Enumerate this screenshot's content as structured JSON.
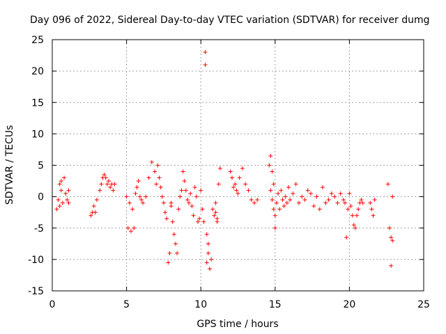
{
  "chart_data": {
    "type": "scatter",
    "title": "Day 096 of 2022, Sidereal Day-to-day VTEC variation (SDTVAR) for receiver dumg",
    "xlabel": "GPS time / hours",
    "ylabel": "SDTVAR / TECUs",
    "xlim": [
      0,
      25
    ],
    "ylim": [
      -15,
      25
    ],
    "xticks": [
      "0",
      "5",
      "10",
      "15",
      "20",
      "25"
    ],
    "yticks": [
      "-15",
      "-10",
      "-5",
      "0",
      "5",
      "10",
      "15",
      "20",
      "25"
    ],
    "grid": true,
    "marker": "+",
    "series_color": "#ff0000",
    "series": [
      {
        "name": "SDTVAR",
        "x": [
          0.3,
          0.4,
          0.5,
          0.5,
          0.6,
          0.6,
          0.7,
          0.8,
          0.9,
          1.0,
          1.1,
          1.1,
          2.6,
          2.7,
          2.8,
          2.9,
          3.0,
          3.2,
          3.3,
          3.4,
          3.5,
          3.6,
          3.7,
          3.8,
          3.9,
          4.0,
          4.1,
          4.2,
          5.0,
          5.1,
          5.2,
          5.3,
          5.4,
          5.5,
          5.6,
          5.7,
          5.8,
          5.9,
          6.0,
          6.1,
          6.3,
          6.5,
          6.7,
          6.9,
          7.0,
          7.1,
          7.2,
          7.3,
          7.4,
          7.5,
          7.6,
          7.7,
          7.8,
          7.9,
          8.0,
          8.0,
          8.1,
          8.2,
          8.3,
          8.4,
          8.5,
          8.6,
          8.7,
          8.8,
          8.9,
          9.0,
          9.1,
          9.2,
          9.3,
          9.4,
          9.5,
          9.6,
          9.7,
          9.8,
          9.9,
          10.0,
          10.1,
          10.2,
          10.3,
          10.3,
          10.4,
          10.4,
          10.5,
          10.5,
          10.6,
          10.7,
          10.8,
          10.9,
          11.0,
          11.0,
          11.1,
          11.1,
          11.2,
          11.3,
          12.0,
          12.1,
          12.2,
          12.3,
          12.4,
          12.5,
          12.6,
          12.8,
          13.0,
          13.2,
          13.4,
          13.6,
          13.8,
          14.6,
          14.7,
          14.7,
          14.8,
          14.8,
          14.9,
          14.9,
          15.0,
          15.0,
          15.1,
          15.2,
          15.3,
          15.4,
          15.5,
          15.6,
          15.7,
          15.8,
          15.9,
          16.0,
          16.2,
          16.4,
          16.6,
          16.8,
          17.0,
          17.2,
          17.4,
          17.6,
          17.8,
          18.0,
          18.2,
          18.4,
          18.6,
          18.8,
          19.0,
          19.2,
          19.4,
          19.6,
          19.7,
          19.8,
          19.9,
          20.0,
          20.1,
          20.2,
          20.3,
          20.4,
          20.5,
          20.6,
          20.7,
          20.8,
          20.9,
          21.4,
          21.5,
          21.6,
          21.7,
          22.6,
          22.7,
          22.8,
          22.8,
          22.9,
          22.9
        ],
        "y": [
          -2.0,
          -0.5,
          2.0,
          -1.5,
          1.0,
          2.5,
          -1.0,
          3.0,
          0.5,
          -0.5,
          1.0,
          -1.0,
          -3.0,
          -2.5,
          -1.5,
          -2.5,
          -0.5,
          1.0,
          2.0,
          3.0,
          3.5,
          3.0,
          2.0,
          2.5,
          1.5,
          2.0,
          1.0,
          2.0,
          0.0,
          -5.0,
          -1.0,
          -5.5,
          -2.0,
          -5.0,
          0.5,
          1.5,
          2.5,
          0.0,
          -0.5,
          -1.0,
          0.0,
          3.0,
          5.5,
          4.0,
          2.0,
          5.0,
          3.0,
          1.5,
          0.0,
          -1.0,
          -2.5,
          -3.5,
          -10.5,
          -9.0,
          -1.0,
          -1.5,
          -4.0,
          -6.0,
          -7.5,
          -9.0,
          -2.0,
          0.0,
          1.0,
          4.0,
          2.5,
          1.0,
          -0.5,
          -1.0,
          0.5,
          -1.5,
          -3.0,
          1.5,
          0.0,
          -4.0,
          -3.5,
          1.0,
          -2.0,
          -4.0,
          23.0,
          21.0,
          -6.0,
          -10.5,
          -7.5,
          -9.0,
          -11.5,
          -10.0,
          -2.0,
          -3.0,
          -1.0,
          -2.5,
          -4.0,
          -3.5,
          2.0,
          4.5,
          4.0,
          3.0,
          1.5,
          2.0,
          1.0,
          0.5,
          3.0,
          4.5,
          2.0,
          1.0,
          -0.5,
          -1.0,
          -0.5,
          5.0,
          6.5,
          1.0,
          -0.5,
          4.0,
          2.0,
          -2.0,
          -5.0,
          -3.0,
          -1.0,
          0.5,
          -2.0,
          1.0,
          -0.5,
          -1.5,
          0.0,
          -1.0,
          1.5,
          -0.5,
          0.5,
          2.0,
          -1.0,
          0.0,
          -0.5,
          1.0,
          0.5,
          -1.5,
          0.0,
          -2.0,
          1.5,
          -1.0,
          -0.5,
          0.5,
          0.0,
          -1.0,
          0.5,
          -0.5,
          -1.0,
          -6.5,
          -2.0,
          0.5,
          -1.5,
          -3.0,
          -4.5,
          -5.0,
          -3.0,
          -2.0,
          -1.0,
          -0.5,
          -1.0,
          -1.0,
          -2.0,
          -3.0,
          -0.5,
          2.0,
          -5.0,
          -11.0,
          -6.5,
          -7.0,
          0.0
        ]
      }
    ]
  }
}
